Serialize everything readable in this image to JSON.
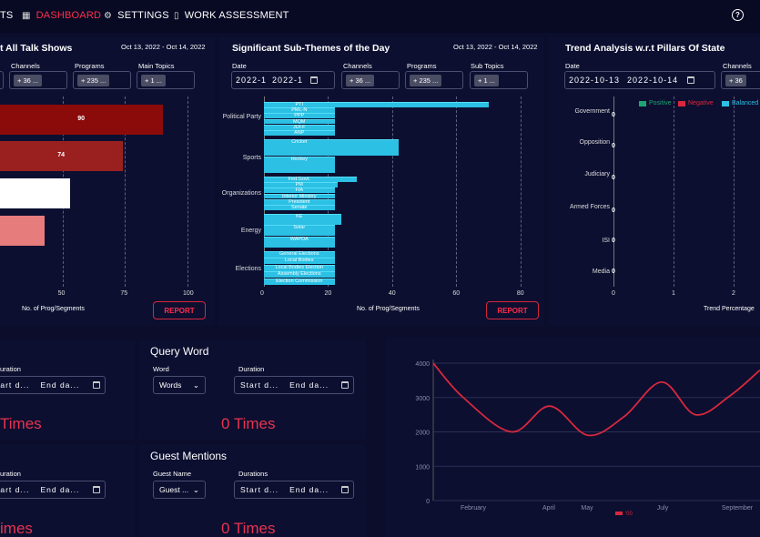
{
  "nav": {
    "items": [
      {
        "label": "TS",
        "active": false
      },
      {
        "label": "DASHBOARD",
        "active": true
      },
      {
        "label": "SETTINGS",
        "active": false
      },
      {
        "label": "WORK ASSESSMENT",
        "active": false
      }
    ],
    "help": "?"
  },
  "talkshows": {
    "title": "t All Talk Shows",
    "date_range": "Oct 13, 2022 - Oct 14, 2022",
    "filters": {
      "channels_label": "Channels",
      "channels_chip": "+ 36 ...",
      "programs_label": "Programs",
      "programs_chip": "+ 235 ...",
      "topics_label": "Main Topics",
      "topics_chip": "+ 1 ..."
    },
    "report": "REPORT"
  },
  "subthemes": {
    "title": "Significant Sub-Themes of the Day",
    "date_range": "Oct 13, 2022 - Oct 14, 2022",
    "filters": {
      "date_label": "Date",
      "date_from": "2022-1",
      "date_to": "2022-1",
      "channels_label": "Channels",
      "channels_chip": "+ 36 ...",
      "programs_label": "Programs",
      "programs_chip": "+ 235 ...",
      "subtopics_label": "Sub Topics",
      "subtopics_chip": "+ 1 ..."
    },
    "report": "REPORT"
  },
  "trend": {
    "title": "Trend Analysis w.r.t Pillars Of State",
    "filters": {
      "date_label": "Date",
      "date_from": "2022-10-13",
      "date_to": "2022-10-14",
      "channels_label": "Channels",
      "channels_chip": "+ 36"
    }
  },
  "query_left": {
    "duration_label": "uration",
    "start": "tart d...",
    "end": "End da...",
    "times": "Times"
  },
  "query_word": {
    "title": "Query Word",
    "word_label": "Word",
    "word_value": "Words",
    "duration_label": "Duration",
    "start": "Start d...",
    "end": "End da...",
    "times": "0 Times"
  },
  "guest_left": {
    "duration_label": "uration",
    "start": "tart d...",
    "end": "End da...",
    "times": "imes"
  },
  "guest": {
    "title": "Guest Mentions",
    "name_label": "Guest Name",
    "name_value": "Guest ...",
    "duration_label": "Durations",
    "start": "Start d...",
    "end": "End da...",
    "times": "0 Times"
  },
  "chart_data": [
    {
      "type": "bar",
      "orientation": "horizontal",
      "title": "t All Talk Shows",
      "xlabel": "No. of Prog/Segments",
      "x_ticks": [
        50,
        75,
        100
      ],
      "xlim": [
        25,
        100
      ],
      "values": [
        90,
        74,
        53,
        43
      ],
      "labels": [
        "90",
        "74",
        "",
        ""
      ],
      "colors": [
        "#8b0b0b",
        "#9a2020",
        "#ffffff",
        "#e67c7c"
      ]
    },
    {
      "type": "bar",
      "orientation": "horizontal",
      "title": "Significant Sub-Themes of the Day",
      "xlabel": "No. of Prog/Segments",
      "x_ticks": [
        0,
        20,
        40,
        60,
        80
      ],
      "xlim": [
        0,
        88
      ],
      "groups": [
        {
          "name": "Political Party",
          "labels": [
            "PTI",
            "PML-N",
            "PPP",
            "MQM",
            "JUI-F",
            "ANP"
          ],
          "values": [
            70,
            22,
            22,
            22,
            22,
            22
          ]
        },
        {
          "name": "Sports",
          "labels": [
            "Cricket",
            "Hockey"
          ],
          "values": [
            42,
            22
          ]
        },
        {
          "name": "Organizations",
          "labels": [
            "Fed.Govt.",
            "PM",
            "FIA",
            "Interior Ministry",
            "President",
            "Senate"
          ],
          "values": [
            29,
            23,
            22,
            22,
            22,
            22
          ]
        },
        {
          "name": "Energy",
          "labels": [
            "KE",
            "Solar",
            "WAPDA"
          ],
          "values": [
            24,
            22,
            22
          ]
        },
        {
          "name": "Elections",
          "labels": [
            "General Elections",
            "Local Bodies",
            "Local Bodies Election",
            "Assembly Elections",
            "Election Commission"
          ],
          "values": [
            22,
            22,
            22,
            22,
            22
          ]
        }
      ]
    },
    {
      "type": "bar",
      "orientation": "horizontal",
      "title": "Trend Analysis w.r.t Pillars Of State",
      "xlabel": "Trend Percentage",
      "categories": [
        "Government",
        "Opposition",
        "Judiciary",
        "Armed Forces",
        "ISI",
        "Media"
      ],
      "values": [
        0,
        0,
        0,
        0,
        0,
        0
      ],
      "x_ticks": [
        0,
        1,
        2
      ],
      "legend": [
        "Positive",
        "Negative",
        "Balanced"
      ],
      "legend_colors": [
        "#1ea672",
        "#d9283d",
        "#2bc0e4"
      ]
    },
    {
      "type": "line",
      "x_ticks": [
        "February",
        "April",
        "May",
        "July",
        "September"
      ],
      "y_ticks": [
        0,
        1000,
        2000,
        3000,
        4000
      ],
      "ylim": [
        0,
        4000
      ],
      "x": [
        1,
        2,
        3,
        4,
        5,
        6,
        7,
        8,
        9,
        10
      ],
      "values": [
        4000,
        3000,
        2000,
        2750,
        1900,
        2450,
        3450,
        2500,
        3050,
        3800
      ],
      "legend": "'00",
      "color": "#d9283d"
    }
  ]
}
